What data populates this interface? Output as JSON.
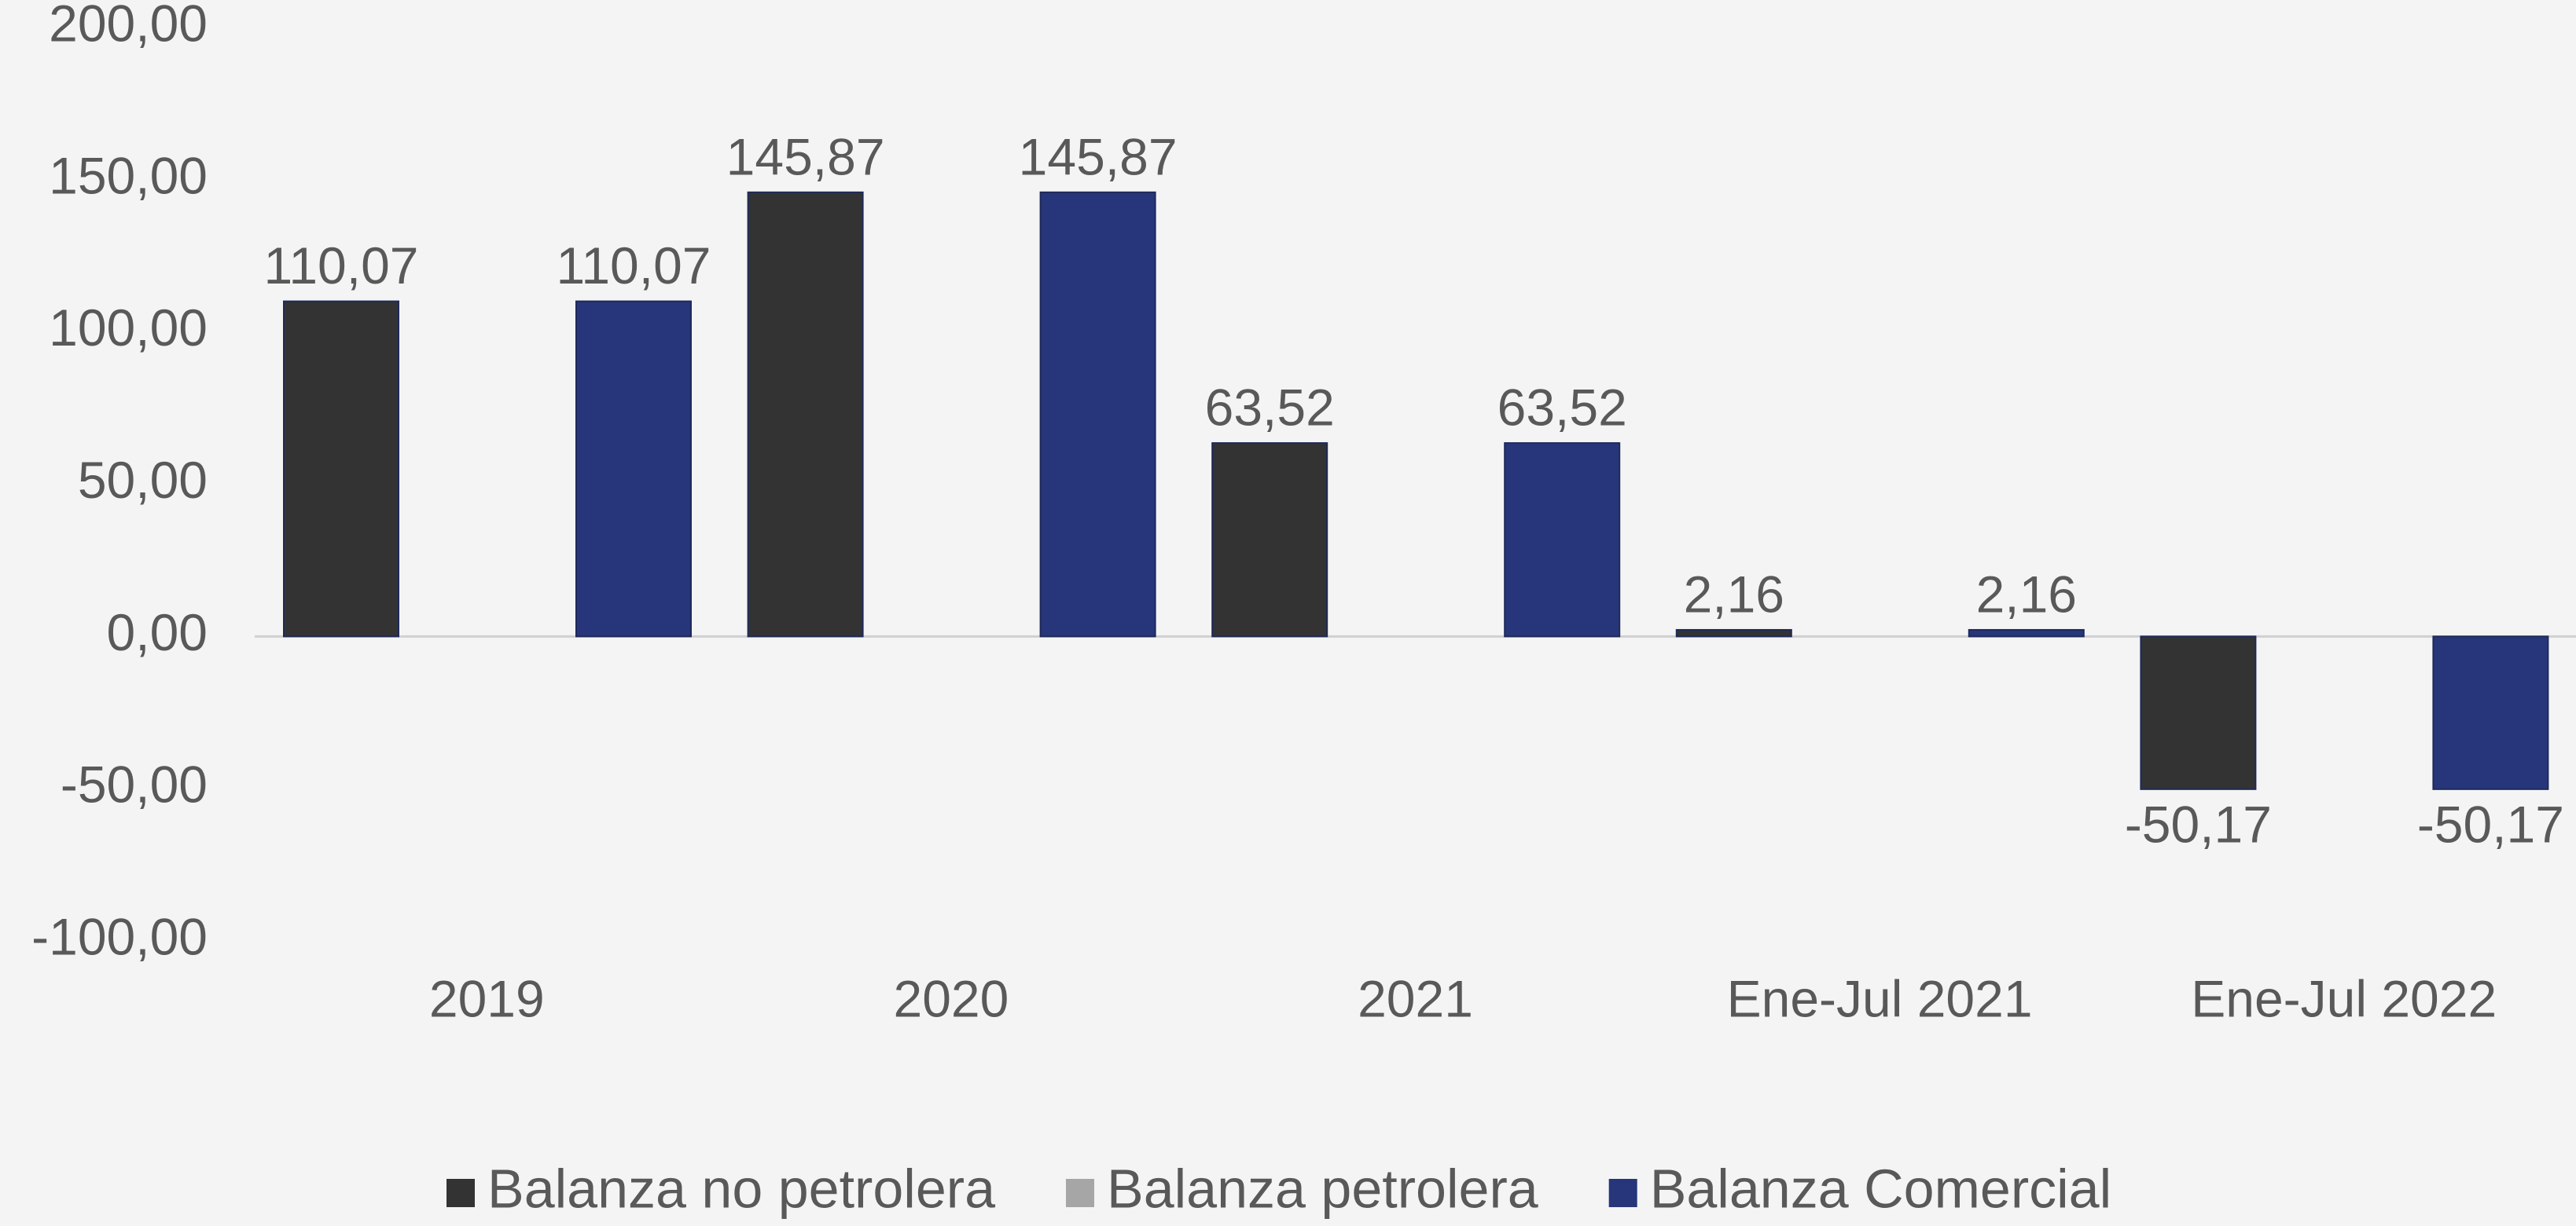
{
  "chart_data": {
    "type": "bar",
    "categories": [
      "2019",
      "2020",
      "2021",
      "Ene-Jul 2021",
      "Ene-Jul 2022"
    ],
    "series": [
      {
        "name": "Balanza no petrolera",
        "color": "#333333",
        "values": [
          110.07,
          145.87,
          63.52,
          2.16,
          -50.17
        ],
        "value_labels": [
          "110,07",
          "145,87",
          "63,52",
          "2,16",
          "-50,17"
        ]
      },
      {
        "name": "Balanza petrolera",
        "color": "#a6a6a6",
        "values": [
          null,
          null,
          null,
          null,
          null
        ]
      },
      {
        "name": "Balanza Comercial",
        "color": "#27367a",
        "values": [
          110.07,
          145.87,
          63.52,
          2.16,
          -50.17
        ],
        "value_labels": [
          "110,07",
          "145,87",
          "63,52",
          "2,16",
          "-50,17"
        ]
      }
    ],
    "ylim": [
      -100,
      200
    ],
    "yticks": [
      {
        "value": -100,
        "label": "-100,00"
      },
      {
        "value": -50,
        "label": "-50,00"
      },
      {
        "value": 0,
        "label": "0,00"
      },
      {
        "value": 50,
        "label": "50,00"
      },
      {
        "value": 100,
        "label": "100,00"
      },
      {
        "value": 150,
        "label": "150,00"
      },
      {
        "value": 200,
        "label": "200,00"
      }
    ],
    "legend": "bottom"
  }
}
